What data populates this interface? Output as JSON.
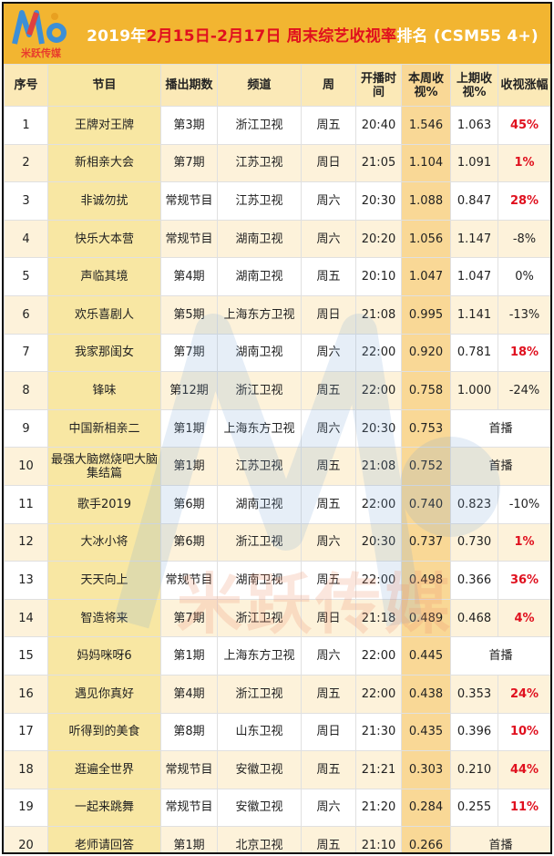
{
  "header": {
    "logo_text": "米跃传媒",
    "title_prefix": "2019年",
    "title_dates": "2月15日-2月17日",
    "title_highlight": "周末综艺收视率",
    "title_suffix": "排名 (CSM55 4+)"
  },
  "columns": [
    "序号",
    "节目",
    "播出期数",
    "频道",
    "周",
    "开播时间",
    "本周收视%",
    "上期收视%",
    "收视涨幅"
  ],
  "rows": [
    {
      "rank": "1",
      "program": "王牌对王牌",
      "episode": "第3期",
      "channel": "浙江卫视",
      "day": "周五",
      "time": "20:40",
      "rate": "1.546",
      "prev": "1.063",
      "change": "45%",
      "up": true
    },
    {
      "rank": "2",
      "program": "新相亲大会",
      "episode": "第7期",
      "channel": "江苏卫视",
      "day": "周日",
      "time": "21:05",
      "rate": "1.104",
      "prev": "1.091",
      "change": "1%",
      "up": true
    },
    {
      "rank": "3",
      "program": "非诚勿扰",
      "episode": "常规节目",
      "channel": "江苏卫视",
      "day": "周六",
      "time": "20:30",
      "rate": "1.088",
      "prev": "0.847",
      "change": "28%",
      "up": true
    },
    {
      "rank": "4",
      "program": "快乐大本营",
      "episode": "常规节目",
      "channel": "湖南卫视",
      "day": "周六",
      "time": "20:20",
      "rate": "1.056",
      "prev": "1.147",
      "change": "-8%",
      "up": false
    },
    {
      "rank": "5",
      "program": "声临其境",
      "episode": "第4期",
      "channel": "湖南卫视",
      "day": "周五",
      "time": "20:10",
      "rate": "1.047",
      "prev": "1.047",
      "change": "0%",
      "up": false
    },
    {
      "rank": "6",
      "program": "欢乐喜剧人",
      "episode": "第5期",
      "channel": "上海东方卫视",
      "day": "周日",
      "time": "21:08",
      "rate": "0.995",
      "prev": "1.141",
      "change": "-13%",
      "up": false
    },
    {
      "rank": "7",
      "program": "我家那闺女",
      "episode": "第7期",
      "channel": "湖南卫视",
      "day": "周六",
      "time": "22:00",
      "rate": "0.920",
      "prev": "0.781",
      "change": "18%",
      "up": true
    },
    {
      "rank": "8",
      "program": "锋味",
      "episode": "第12期",
      "channel": "浙江卫视",
      "day": "周五",
      "time": "22:00",
      "rate": "0.758",
      "prev": "1.000",
      "change": "-24%",
      "up": false
    },
    {
      "rank": "9",
      "program": "中国新相亲二",
      "episode": "第1期",
      "channel": "上海东方卫视",
      "day": "周六",
      "time": "20:30",
      "rate": "0.753",
      "premiere": "首播"
    },
    {
      "rank": "10",
      "program": "最强大脑燃烧吧大脑集结篇",
      "episode": "第1期",
      "channel": "江苏卫视",
      "day": "周五",
      "time": "21:08",
      "rate": "0.752",
      "premiere": "首播"
    },
    {
      "rank": "11",
      "program": "歌手2019",
      "episode": "第6期",
      "channel": "湖南卫视",
      "day": "周五",
      "time": "22:00",
      "rate": "0.740",
      "prev": "0.823",
      "change": "-10%",
      "up": false
    },
    {
      "rank": "12",
      "program": "大冰小将",
      "episode": "第6期",
      "channel": "浙江卫视",
      "day": "周六",
      "time": "20:30",
      "rate": "0.737",
      "prev": "0.730",
      "change": "1%",
      "up": true
    },
    {
      "rank": "13",
      "program": "天天向上",
      "episode": "常规节目",
      "channel": "湖南卫视",
      "day": "周五",
      "time": "22:00",
      "rate": "0.498",
      "prev": "0.366",
      "change": "36%",
      "up": true
    },
    {
      "rank": "14",
      "program": "智造将来",
      "episode": "第7期",
      "channel": "浙江卫视",
      "day": "周日",
      "time": "21:18",
      "rate": "0.489",
      "prev": "0.468",
      "change": "4%",
      "up": true
    },
    {
      "rank": "15",
      "program": "妈妈咪呀6",
      "episode": "第1期",
      "channel": "上海东方卫视",
      "day": "周六",
      "time": "22:00",
      "rate": "0.445",
      "premiere": "首播"
    },
    {
      "rank": "16",
      "program": "遇见你真好",
      "episode": "第4期",
      "channel": "浙江卫视",
      "day": "周五",
      "time": "22:00",
      "rate": "0.438",
      "prev": "0.353",
      "change": "24%",
      "up": true
    },
    {
      "rank": "17",
      "program": "听得到的美食",
      "episode": "第8期",
      "channel": "山东卫视",
      "day": "周日",
      "time": "21:30",
      "rate": "0.435",
      "prev": "0.396",
      "change": "10%",
      "up": true
    },
    {
      "rank": "18",
      "program": "逛遍全世界",
      "episode": "常规节目",
      "channel": "安徽卫视",
      "day": "周五",
      "time": "21:21",
      "rate": "0.303",
      "prev": "0.210",
      "change": "44%",
      "up": true
    },
    {
      "rank": "19",
      "program": "一起来跳舞",
      "episode": "常规节目",
      "channel": "安徽卫视",
      "day": "周六",
      "time": "21:20",
      "rate": "0.284",
      "prev": "0.255",
      "change": "11%",
      "up": true
    },
    {
      "rank": "20",
      "program": "老师请回答",
      "episode": "第1期",
      "channel": "北京卫视",
      "day": "周五",
      "time": "21:10",
      "rate": "0.266",
      "premiere": "首播"
    }
  ],
  "watermark_text": "米跃传媒",
  "colors": {
    "title_bg": "#f2b531",
    "highlight": "#e0101e",
    "header_bg": "#fbe9b7",
    "row_alt": "#fdf2da",
    "program_col": "#f8e7a3",
    "rate_col": "#f9d896"
  }
}
